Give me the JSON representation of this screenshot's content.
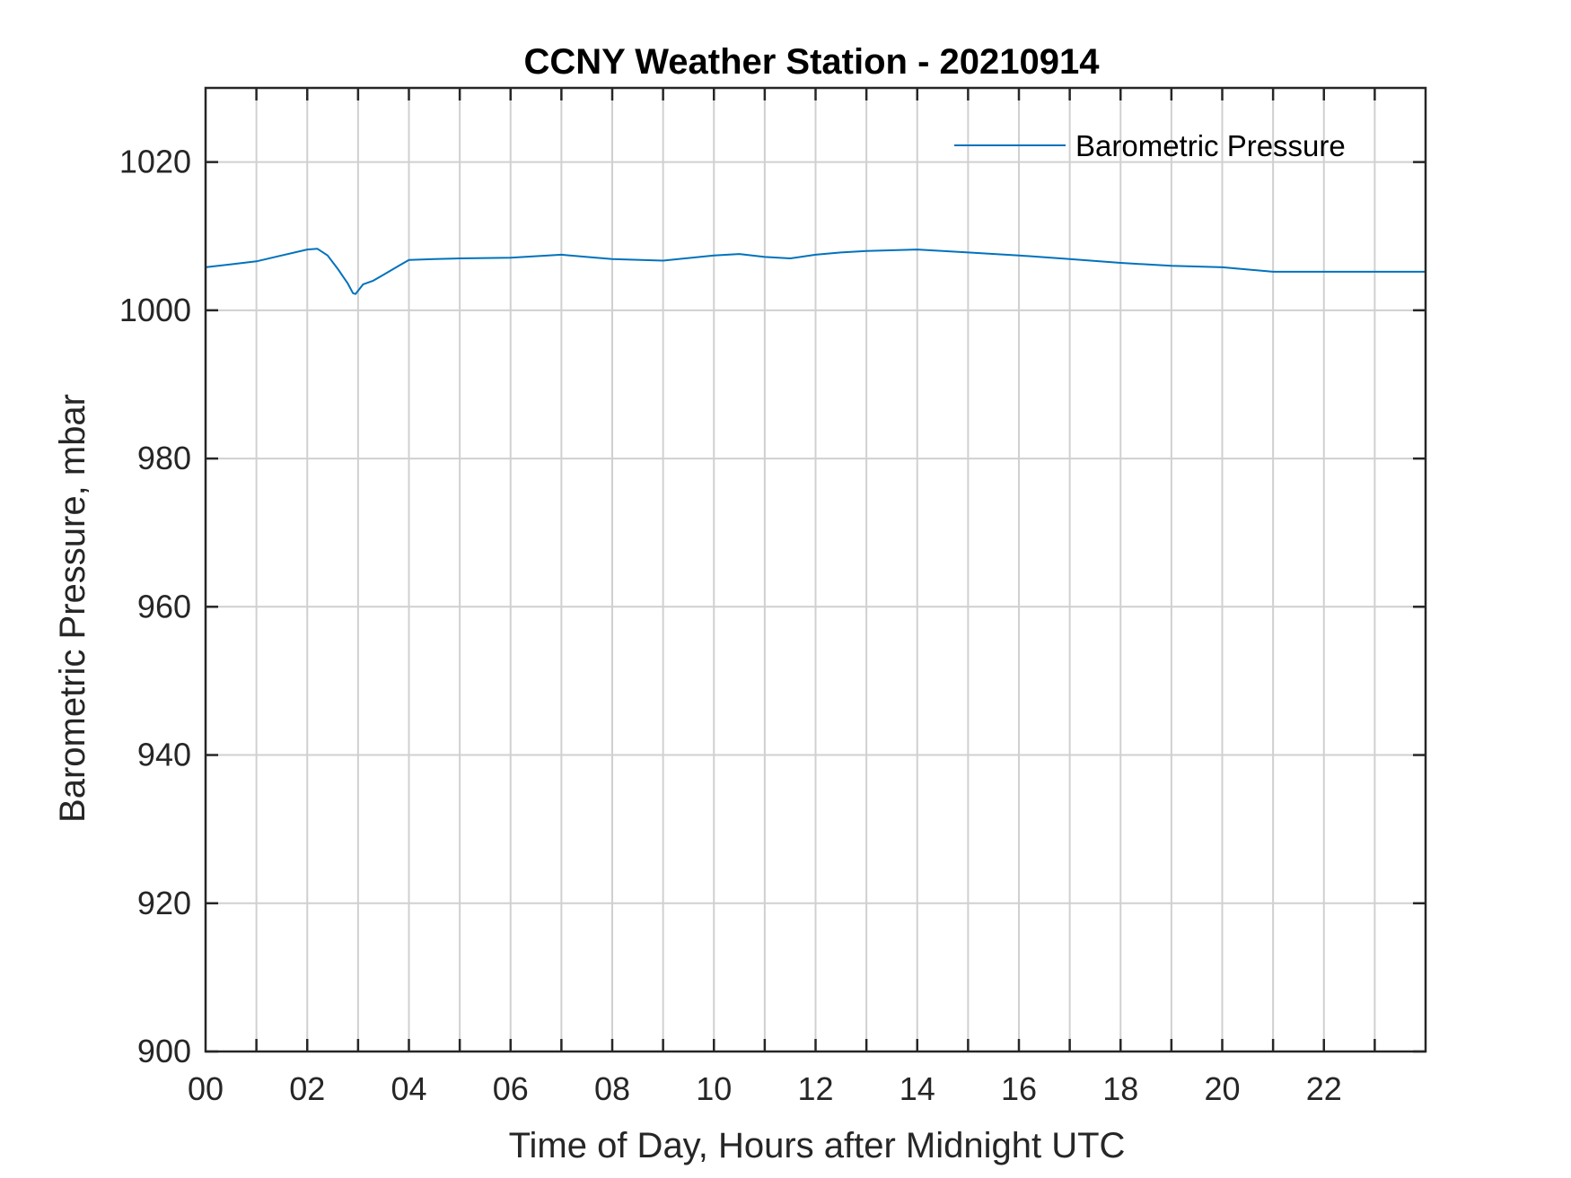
{
  "chart_data": {
    "type": "line",
    "title": "CCNY Weather Station - 20210914",
    "xlabel": "Time of Day, Hours after Midnight UTC",
    "ylabel": "Barometric Pressure, mbar",
    "xlim": [
      0,
      24
    ],
    "ylim": [
      900,
      1030
    ],
    "xticks": [
      0,
      2,
      4,
      6,
      8,
      10,
      12,
      14,
      16,
      18,
      20,
      22
    ],
    "xtick_labels": [
      "00",
      "02",
      "04",
      "06",
      "08",
      "10",
      "12",
      "14",
      "16",
      "18",
      "20",
      "22"
    ],
    "yticks": [
      900,
      920,
      940,
      960,
      980,
      1000,
      1020
    ],
    "ytick_labels": [
      "900",
      "920",
      "940",
      "960",
      "980",
      "1000",
      "1020"
    ],
    "grid": true,
    "minor_x_grid": true,
    "legend_position": "top-right",
    "series": [
      {
        "name": "Barometric Pressure",
        "color": "#0072BD",
        "x": [
          0,
          0.5,
          1,
          1.5,
          2,
          2.2,
          2.4,
          2.6,
          2.8,
          2.9,
          2.95,
          3.1,
          3.3,
          3.5,
          3.8,
          4,
          4.5,
          5,
          6,
          7,
          7.5,
          8,
          9,
          10,
          10.5,
          11,
          11.5,
          12,
          12.5,
          13,
          14,
          14.5,
          15,
          16,
          17,
          18,
          19,
          20,
          20.5,
          21,
          22,
          23,
          24
        ],
        "values": [
          1005.8,
          1006.2,
          1006.6,
          1007.4,
          1008.2,
          1008.3,
          1007.4,
          1005.6,
          1003.6,
          1002.3,
          1002.2,
          1003.5,
          1004.0,
          1004.8,
          1006.0,
          1006.8,
          1006.9,
          1007.0,
          1007.1,
          1007.5,
          1007.2,
          1006.9,
          1006.7,
          1007.4,
          1007.6,
          1007.2,
          1007.0,
          1007.5,
          1007.8,
          1008.0,
          1008.2,
          1008.0,
          1007.8,
          1007.4,
          1006.9,
          1006.4,
          1006.0,
          1005.8,
          1005.5,
          1005.2,
          1005.2,
          1005.2,
          1005.2
        ]
      }
    ]
  }
}
